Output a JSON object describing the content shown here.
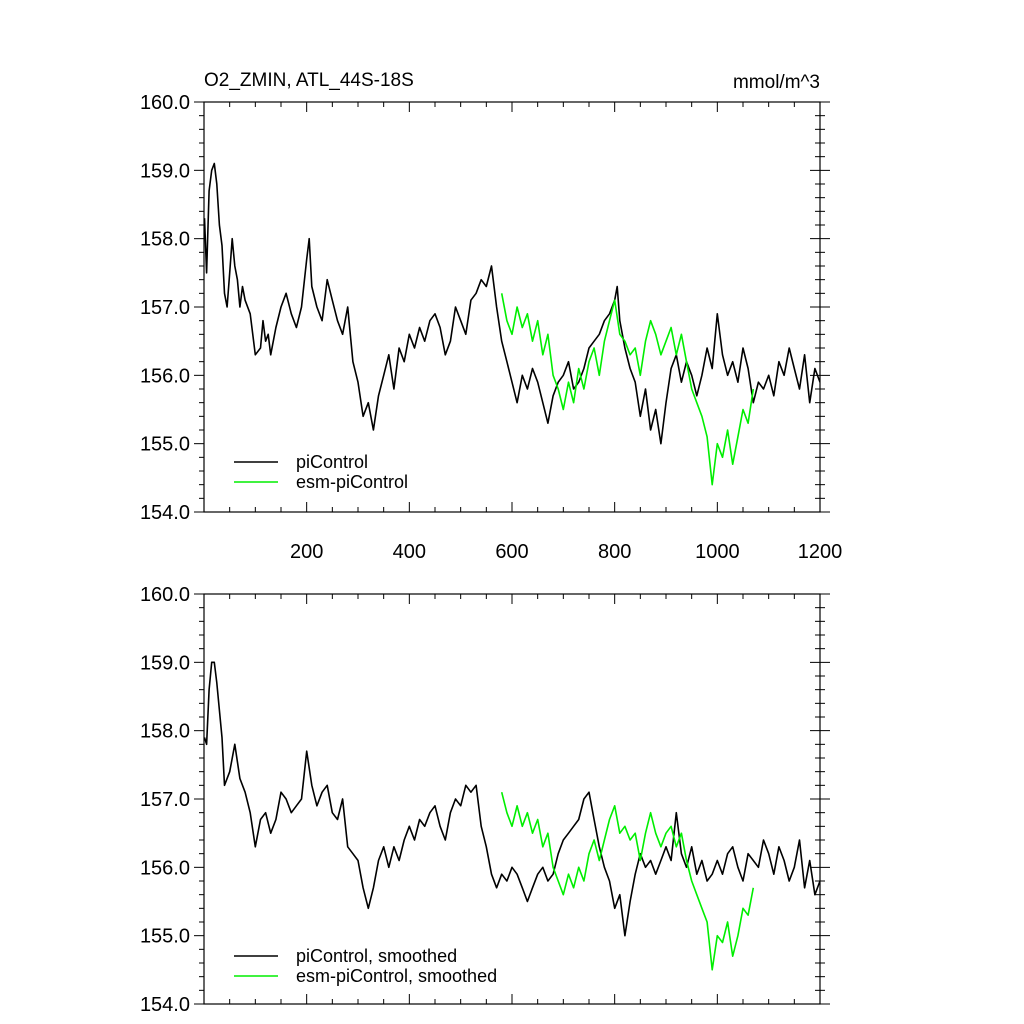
{
  "chart_data": [
    {
      "type": "line",
      "title": "O2_ZMIN, ATL_44S-18S",
      "units": "mmol/m^3",
      "xlim": [
        0,
        1200
      ],
      "ylim": [
        154.0,
        160.0
      ],
      "x_ticks": [
        200,
        400,
        600,
        800,
        1000,
        1200
      ],
      "x_tick_labels": [
        "200",
        "400",
        "600",
        "800",
        "1000",
        "1200"
      ],
      "y_ticks": [
        154.0,
        155.0,
        156.0,
        157.0,
        158.0,
        159.0,
        160.0
      ],
      "y_tick_labels": [
        "154.0",
        "155.0",
        "156.0",
        "157.0",
        "158.0",
        "159.0",
        "160.0"
      ],
      "grid": false,
      "legend_position": "bottom-left",
      "series": [
        {
          "name": "piControl",
          "color": "#000000",
          "x": [
            1,
            5,
            10,
            15,
            20,
            25,
            30,
            35,
            40,
            45,
            50,
            55,
            60,
            65,
            70,
            75,
            80,
            90,
            100,
            110,
            115,
            120,
            125,
            130,
            140,
            150,
            160,
            170,
            180,
            190,
            200,
            205,
            210,
            220,
            230,
            240,
            250,
            260,
            270,
            280,
            290,
            300,
            310,
            320,
            330,
            340,
            350,
            360,
            370,
            380,
            390,
            400,
            410,
            420,
            430,
            440,
            450,
            460,
            470,
            480,
            490,
            500,
            510,
            520,
            530,
            540,
            550,
            560,
            570,
            580,
            590,
            600,
            610,
            620,
            630,
            640,
            650,
            660,
            670,
            680,
            690,
            700,
            710,
            720,
            730,
            740,
            750,
            760,
            770,
            780,
            790,
            800,
            805,
            810,
            820,
            830,
            840,
            850,
            860,
            870,
            880,
            890,
            900,
            910,
            920,
            930,
            940,
            950,
            960,
            970,
            980,
            990,
            1000,
            1010,
            1020,
            1030,
            1040,
            1050,
            1060,
            1070,
            1080,
            1090,
            1100,
            1110,
            1120,
            1130,
            1140,
            1150,
            1160,
            1170,
            1180,
            1190,
            1200
          ],
          "values": [
            158.3,
            157.5,
            158.7,
            159.0,
            159.1,
            158.8,
            158.2,
            157.9,
            157.2,
            157.0,
            157.5,
            158.0,
            157.6,
            157.4,
            157.0,
            157.3,
            157.1,
            156.9,
            156.3,
            156.4,
            156.8,
            156.5,
            156.6,
            156.3,
            156.7,
            157.0,
            157.2,
            156.9,
            156.7,
            157.0,
            157.7,
            158.0,
            157.3,
            157.0,
            156.8,
            157.4,
            157.1,
            156.8,
            156.6,
            157.0,
            156.2,
            155.9,
            155.4,
            155.6,
            155.2,
            155.7,
            156.0,
            156.3,
            155.8,
            156.4,
            156.2,
            156.6,
            156.4,
            156.7,
            156.5,
            156.8,
            156.9,
            156.7,
            156.3,
            156.5,
            157.0,
            156.8,
            156.6,
            157.1,
            157.2,
            157.4,
            157.3,
            157.6,
            157.0,
            156.5,
            156.2,
            155.9,
            155.6,
            156.0,
            155.8,
            156.1,
            155.9,
            155.6,
            155.3,
            155.7,
            155.9,
            156.0,
            156.2,
            155.8,
            155.9,
            156.1,
            156.4,
            156.5,
            156.6,
            156.8,
            156.9,
            157.1,
            157.3,
            156.8,
            156.4,
            156.1,
            155.9,
            155.4,
            155.8,
            155.2,
            155.5,
            155.0,
            155.6,
            156.1,
            156.3,
            155.9,
            156.2,
            156.0,
            155.7,
            156.0,
            156.4,
            156.1,
            156.9,
            156.3,
            156.0,
            156.2,
            155.9,
            156.4,
            156.1,
            155.6,
            155.9,
            155.8,
            156.0,
            155.7,
            156.2,
            156.0,
            156.4,
            156.1,
            155.8,
            156.3,
            155.6,
            156.1,
            155.9
          ]
        },
        {
          "name": "esm-piControl",
          "color": "#00ee00",
          "x": [
            580,
            590,
            600,
            610,
            620,
            630,
            640,
            650,
            660,
            670,
            680,
            690,
            700,
            710,
            720,
            730,
            740,
            750,
            760,
            770,
            780,
            790,
            800,
            810,
            820,
            830,
            840,
            850,
            860,
            870,
            880,
            890,
            900,
            910,
            920,
            930,
            940,
            950,
            960,
            970,
            980,
            990,
            1000,
            1010,
            1020,
            1030,
            1040,
            1050,
            1060,
            1070
          ],
          "values": [
            157.2,
            156.8,
            156.6,
            157.0,
            156.7,
            156.9,
            156.5,
            156.8,
            156.3,
            156.6,
            156.0,
            155.8,
            155.5,
            155.9,
            155.6,
            156.1,
            155.8,
            156.2,
            156.4,
            156.0,
            156.5,
            156.8,
            157.1,
            156.6,
            156.5,
            156.3,
            156.4,
            156.0,
            156.5,
            156.8,
            156.6,
            156.3,
            156.5,
            156.7,
            156.3,
            156.6,
            156.2,
            155.8,
            155.6,
            155.4,
            155.1,
            154.4,
            155.0,
            154.8,
            155.2,
            154.7,
            155.1,
            155.5,
            155.3,
            155.8
          ]
        }
      ],
      "legend": [
        "piControl",
        "esm-piControl"
      ]
    },
    {
      "type": "line",
      "title": "",
      "xlim": [
        0,
        1200
      ],
      "ylim": [
        154.0,
        160.0
      ],
      "y_ticks": [
        154.0,
        155.0,
        156.0,
        157.0,
        158.0,
        159.0,
        160.0
      ],
      "y_tick_labels": [
        "154.0",
        "155.0",
        "156.0",
        "157.0",
        "158.0",
        "159.0",
        "160.0"
      ],
      "x_ticks": [
        200,
        400,
        600,
        800,
        1000,
        1200
      ],
      "grid": false,
      "legend_position": "bottom-left",
      "series": [
        {
          "name": "piControl, smoothed",
          "color": "#000000",
          "x": [
            1,
            5,
            10,
            15,
            20,
            25,
            30,
            35,
            40,
            50,
            60,
            70,
            80,
            90,
            100,
            110,
            120,
            130,
            140,
            150,
            160,
            170,
            180,
            190,
            200,
            210,
            220,
            230,
            240,
            250,
            260,
            270,
            280,
            290,
            300,
            310,
            320,
            330,
            340,
            350,
            360,
            370,
            380,
            390,
            400,
            410,
            420,
            430,
            440,
            450,
            460,
            470,
            480,
            490,
            500,
            510,
            520,
            530,
            540,
            550,
            560,
            570,
            580,
            590,
            600,
            610,
            620,
            630,
            640,
            650,
            660,
            670,
            680,
            690,
            700,
            710,
            720,
            730,
            740,
            750,
            760,
            770,
            780,
            790,
            800,
            810,
            820,
            830,
            840,
            850,
            860,
            870,
            880,
            890,
            900,
            910,
            920,
            930,
            940,
            950,
            960,
            970,
            980,
            990,
            1000,
            1010,
            1020,
            1030,
            1040,
            1050,
            1060,
            1070,
            1080,
            1090,
            1100,
            1110,
            1120,
            1130,
            1140,
            1150,
            1160,
            1170,
            1180,
            1190,
            1200
          ],
          "values": [
            157.9,
            157.8,
            158.6,
            159.0,
            159.0,
            158.7,
            158.3,
            157.9,
            157.2,
            157.4,
            157.8,
            157.3,
            157.1,
            156.8,
            156.3,
            156.7,
            156.8,
            156.5,
            156.7,
            157.1,
            157.0,
            156.8,
            156.9,
            157.0,
            157.7,
            157.2,
            156.9,
            157.1,
            157.2,
            156.8,
            156.7,
            157.0,
            156.3,
            156.2,
            156.1,
            155.7,
            155.4,
            155.7,
            156.1,
            156.3,
            156.0,
            156.3,
            156.1,
            156.4,
            156.6,
            156.4,
            156.7,
            156.6,
            156.8,
            156.9,
            156.6,
            156.4,
            156.8,
            157.0,
            156.9,
            157.2,
            157.1,
            157.2,
            156.6,
            156.3,
            155.9,
            155.7,
            155.9,
            155.8,
            156.0,
            155.9,
            155.7,
            155.5,
            155.7,
            155.9,
            156.0,
            155.8,
            155.9,
            156.2,
            156.4,
            156.5,
            156.6,
            156.7,
            157.0,
            157.1,
            156.7,
            156.3,
            156.0,
            155.8,
            155.4,
            155.6,
            155.0,
            155.5,
            155.9,
            156.2,
            156.0,
            156.1,
            155.9,
            156.1,
            156.3,
            156.1,
            156.8,
            156.2,
            156.0,
            156.3,
            155.9,
            156.1,
            155.8,
            155.9,
            156.1,
            155.9,
            156.2,
            156.3,
            156.0,
            155.8,
            156.2,
            156.1,
            156.0,
            156.4,
            156.2,
            155.9,
            156.3,
            156.1,
            155.8,
            156.0,
            156.4,
            155.7,
            156.1,
            155.6,
            155.8
          ]
        },
        {
          "name": "esm-piControl, smoothed",
          "color": "#00ee00",
          "x": [
            580,
            590,
            600,
            610,
            620,
            630,
            640,
            650,
            660,
            670,
            680,
            690,
            700,
            710,
            720,
            730,
            740,
            750,
            760,
            770,
            780,
            790,
            800,
            810,
            820,
            830,
            840,
            850,
            860,
            870,
            880,
            890,
            900,
            910,
            920,
            930,
            940,
            950,
            960,
            970,
            980,
            990,
            1000,
            1010,
            1020,
            1030,
            1040,
            1050,
            1060,
            1070
          ],
          "values": [
            157.1,
            156.8,
            156.6,
            156.9,
            156.6,
            156.8,
            156.5,
            156.7,
            156.3,
            156.5,
            156.0,
            155.8,
            155.6,
            155.9,
            155.7,
            156.0,
            155.8,
            156.2,
            156.4,
            156.1,
            156.4,
            156.7,
            156.9,
            156.5,
            156.6,
            156.4,
            156.5,
            156.1,
            156.5,
            156.8,
            156.5,
            156.3,
            156.5,
            156.6,
            156.3,
            156.5,
            156.1,
            155.8,
            155.6,
            155.4,
            155.2,
            154.5,
            155.0,
            154.9,
            155.2,
            154.7,
            155.0,
            155.4,
            155.3,
            155.7
          ]
        }
      ],
      "legend": [
        "piControl, smoothed",
        "esm-piControl, smoothed"
      ]
    }
  ]
}
